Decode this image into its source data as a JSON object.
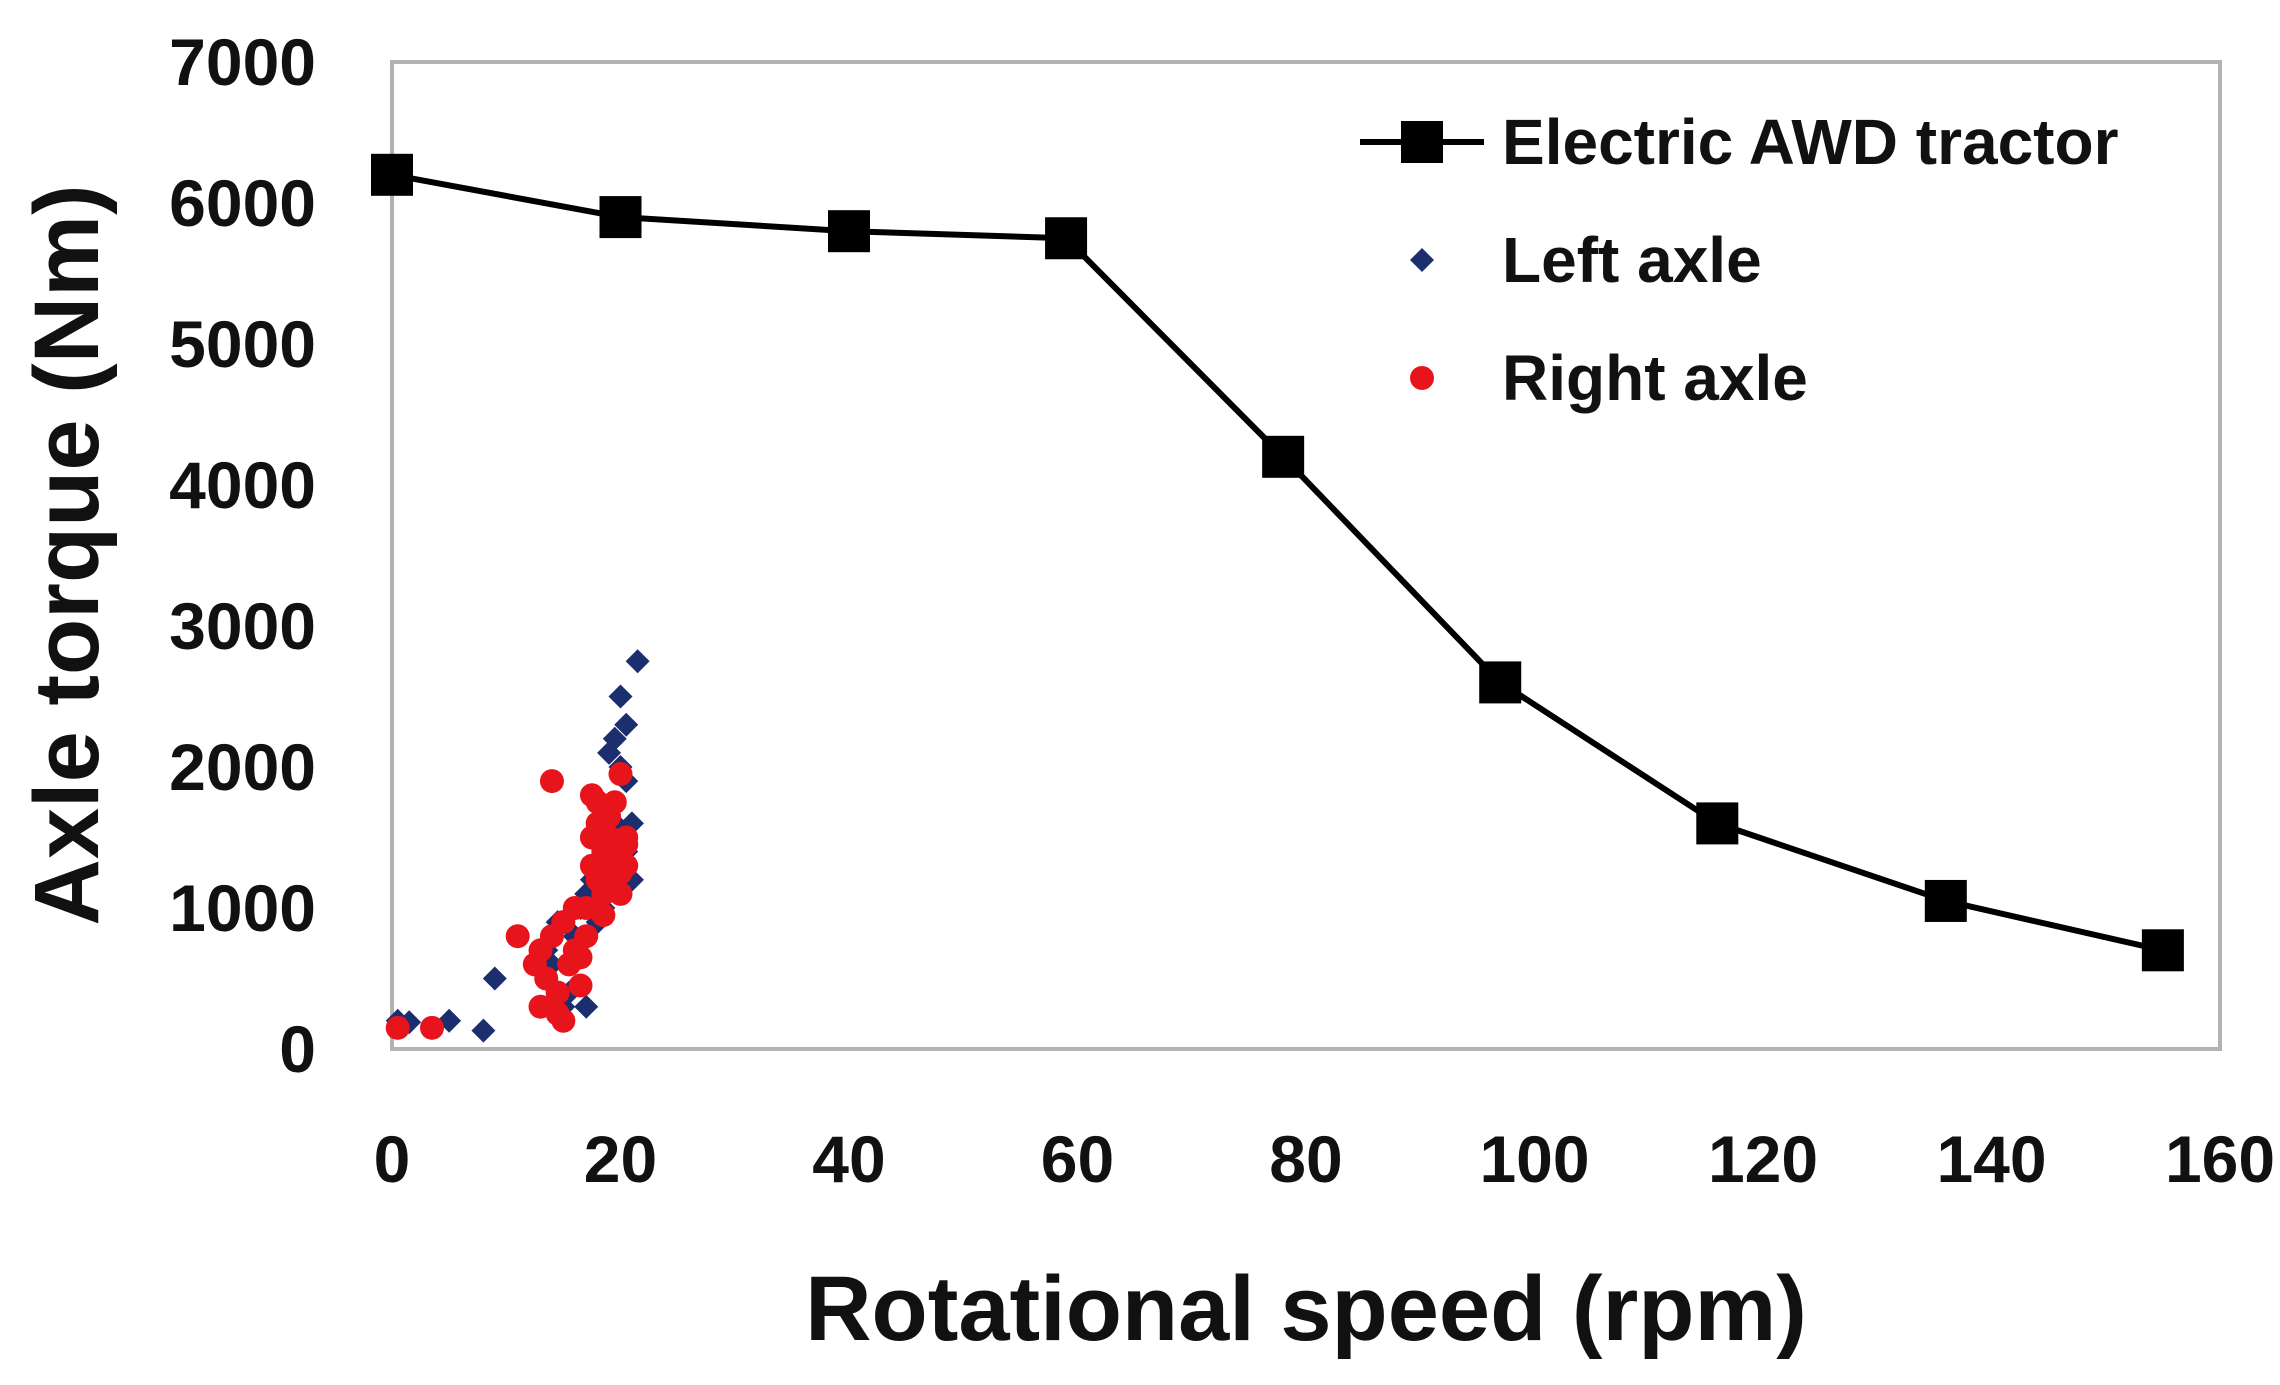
{
  "chart_data": {
    "type": "scatter",
    "title": "",
    "xlabel": "Rotational speed (rpm)",
    "ylabel": "Axle torque (Nm)",
    "xlim": [
      0,
      160
    ],
    "ylim": [
      0,
      7000
    ],
    "xticks": [
      0,
      20,
      40,
      60,
      80,
      100,
      120,
      140,
      160
    ],
    "yticks": [
      0,
      1000,
      2000,
      3000,
      4000,
      5000,
      6000,
      7000
    ],
    "grid": false,
    "legend_position": "top-right",
    "series": [
      {
        "name": "Electric AWD tractor",
        "kind": "line-square-markers",
        "color": "#000000",
        "points": [
          [
            0,
            6200
          ],
          [
            20,
            5900
          ],
          [
            40,
            5800
          ],
          [
            59,
            5750
          ],
          [
            78,
            4200
          ],
          [
            97,
            2600
          ],
          [
            116,
            1600
          ],
          [
            136,
            1050
          ],
          [
            155,
            700
          ]
        ]
      },
      {
        "name": "Left axle",
        "kind": "scatter-diamond",
        "color": "#1b2f6e",
        "points": [
          [
            0.5,
            200
          ],
          [
            1.5,
            190
          ],
          [
            5,
            200
          ],
          [
            8,
            130
          ],
          [
            9,
            500
          ],
          [
            13.5,
            700
          ],
          [
            14,
            600
          ],
          [
            14.5,
            900
          ],
          [
            15,
            300
          ],
          [
            15.5,
            400
          ],
          [
            16,
            800
          ],
          [
            16.5,
            1000
          ],
          [
            17,
            300
          ],
          [
            17,
            1100
          ],
          [
            17.5,
            1200
          ],
          [
            18,
            900
          ],
          [
            18,
            1300
          ],
          [
            18.5,
            1500
          ],
          [
            18.5,
            1000
          ],
          [
            19,
            2100
          ],
          [
            19,
            1700
          ],
          [
            19,
            1400
          ],
          [
            19.5,
            2200
          ],
          [
            19.5,
            1600
          ],
          [
            19.5,
            1200
          ],
          [
            20,
            2500
          ],
          [
            20,
            2000
          ],
          [
            20,
            1500
          ],
          [
            20,
            1300
          ],
          [
            20.5,
            2300
          ],
          [
            20.5,
            1900
          ],
          [
            20.5,
            1400
          ],
          [
            21,
            1600
          ],
          [
            21,
            1200
          ],
          [
            21.5,
            2750
          ]
        ]
      },
      {
        "name": "Right axle",
        "kind": "scatter-circle",
        "color": "#e8141c",
        "points": [
          [
            0.5,
            150
          ],
          [
            3.5,
            150
          ],
          [
            11,
            800
          ],
          [
            12.5,
            600
          ],
          [
            13,
            300
          ],
          [
            13,
            700
          ],
          [
            13.5,
            500
          ],
          [
            14,
            1900
          ],
          [
            14,
            800
          ],
          [
            14.5,
            400
          ],
          [
            14.5,
            250
          ],
          [
            15,
            200
          ],
          [
            15,
            900
          ],
          [
            15.5,
            600
          ],
          [
            16,
            700
          ],
          [
            16,
            1000
          ],
          [
            16.5,
            450
          ],
          [
            16.5,
            650
          ],
          [
            17,
            1000
          ],
          [
            17,
            800
          ],
          [
            17.5,
            1300
          ],
          [
            17.5,
            1500
          ],
          [
            17.5,
            1800
          ],
          [
            18,
            1600
          ],
          [
            18,
            1200
          ],
          [
            18,
            1750
          ],
          [
            18.5,
            1400
          ],
          [
            18.5,
            1100
          ],
          [
            18.5,
            950
          ],
          [
            19,
            1300
          ],
          [
            19,
            1500
          ],
          [
            19,
            1650
          ],
          [
            19.5,
            1200
          ],
          [
            19.5,
            1350
          ],
          [
            19.5,
            1750
          ],
          [
            20,
            1950
          ],
          [
            20,
            1400
          ],
          [
            20,
            1100
          ],
          [
            20,
            1250
          ],
          [
            20.5,
            1500
          ],
          [
            20.5,
            1300
          ],
          [
            20.5,
            1450
          ]
        ]
      }
    ]
  }
}
